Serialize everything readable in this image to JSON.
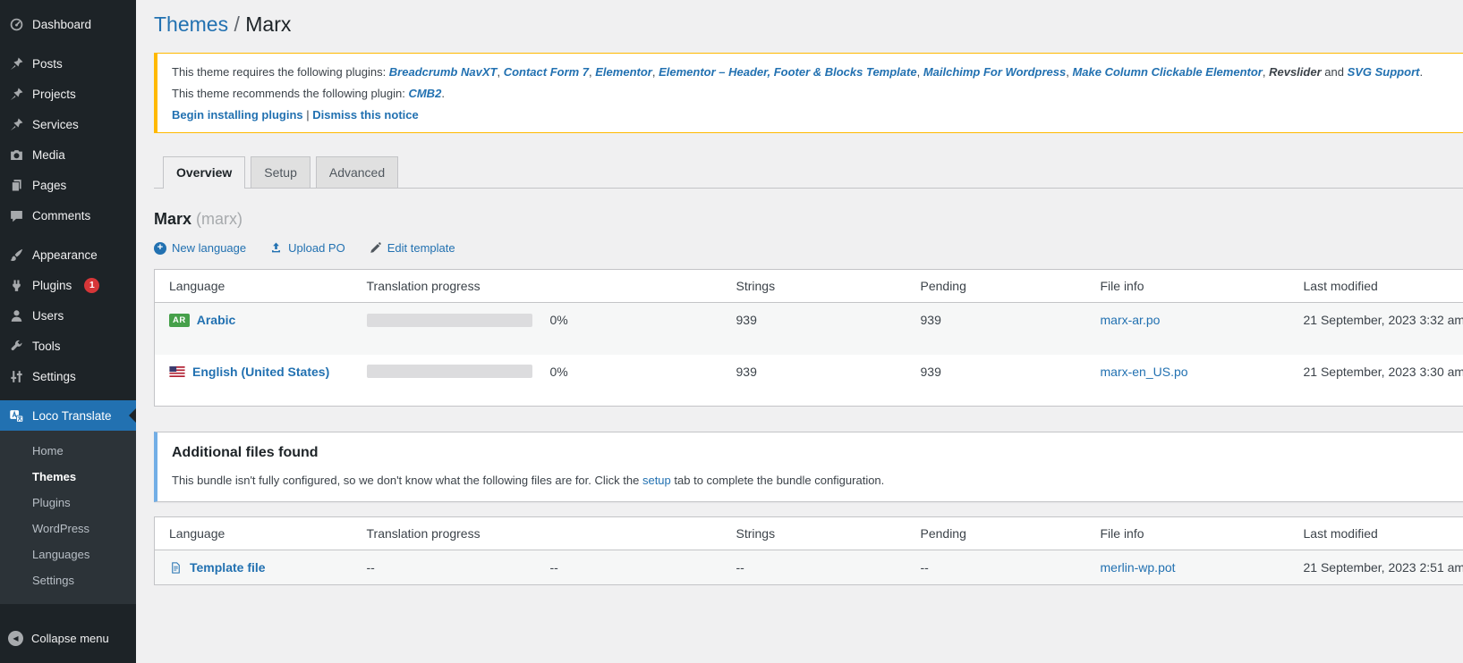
{
  "sidebar": {
    "items": [
      {
        "label": "Dashboard"
      },
      {
        "label": "Posts"
      },
      {
        "label": "Projects"
      },
      {
        "label": "Services"
      },
      {
        "label": "Media"
      },
      {
        "label": "Pages"
      },
      {
        "label": "Comments"
      },
      {
        "label": "Appearance"
      },
      {
        "label": "Plugins",
        "badge": "1"
      },
      {
        "label": "Users"
      },
      {
        "label": "Tools"
      },
      {
        "label": "Settings"
      },
      {
        "label": "Loco Translate"
      }
    ],
    "submenu": [
      {
        "label": "Home"
      },
      {
        "label": "Themes"
      },
      {
        "label": "Plugins"
      },
      {
        "label": "WordPress"
      },
      {
        "label": "Languages"
      },
      {
        "label": "Settings"
      }
    ],
    "collapse_label": "Collapse menu"
  },
  "breadcrumb": {
    "section": "Themes",
    "separator": " / ",
    "current": "Marx"
  },
  "notice": {
    "requires_prefix": "This theme requires the following plugins: ",
    "required_plugins": [
      {
        "name": "Breadcrumb NavXT",
        "link": true
      },
      {
        "name": "Contact Form 7",
        "link": true
      },
      {
        "name": "Elementor",
        "link": true
      },
      {
        "name": "Elementor – Header, Footer & Blocks Template",
        "link": true
      },
      {
        "name": "Mailchimp For Wordpress",
        "link": true
      },
      {
        "name": "Make Column Clickable Elementor",
        "link": true
      },
      {
        "name": "Revslider",
        "link": false
      },
      {
        "name": "SVG Support",
        "link": true
      }
    ],
    "separator": ", ",
    "last_separator": " and ",
    "terminator": ".",
    "recommends_prefix": "This theme recommends the following plugin: ",
    "recommended_plugin": "CMB2",
    "recommended_terminator": ".",
    "action_install": "Begin installing plugins",
    "action_separator": " | ",
    "action_dismiss": "Dismiss this notice"
  },
  "tabs": [
    {
      "label": "Overview"
    },
    {
      "label": "Setup"
    },
    {
      "label": "Advanced"
    }
  ],
  "bundle": {
    "title": "Marx",
    "slug": "(marx)"
  },
  "actions": {
    "new_language": "New language",
    "upload_po": "Upload PO",
    "edit_template": "Edit template"
  },
  "columns": {
    "language": "Language",
    "progress": "Translation progress",
    "strings": "Strings",
    "pending": "Pending",
    "file": "File info",
    "modified": "Last modified"
  },
  "translations": {
    "rows": [
      {
        "code": "AR",
        "language": "Arabic",
        "percent": "0%",
        "strings": "939",
        "pending": "939",
        "file": "marx-ar.po",
        "modified": "21 September, 2023 3:32 am"
      },
      {
        "language": "English (United States)",
        "percent": "0%",
        "strings": "939",
        "pending": "939",
        "file": "marx-en_US.po",
        "modified": "21 September, 2023 3:30 am"
      }
    ]
  },
  "additional": {
    "title": "Additional files found",
    "body_before": "This bundle isn't fully configured, so we don't know what the following files are for. Click the ",
    "setup_link": "setup",
    "body_after": " tab to complete the bundle configuration."
  },
  "template_table": {
    "rows": [
      {
        "language": "Template file",
        "progress_dash": "--",
        "percent_dash": "--",
        "strings": "--",
        "pending": "--",
        "file": "merlin-wp.pot",
        "modified": "21 September, 2023 2:51 am"
      }
    ]
  },
  "colors": {
    "accent_link": "#2271b1",
    "menu_bg": "#1d2327",
    "submenu_bg": "#2c3338",
    "active_menu_bg": "#2271b1",
    "warning_border": "#ffb900",
    "info_border": "#72aee6",
    "badge_red": "#d63638",
    "badge_green": "#46a04a",
    "page_bg": "#f0f0f1",
    "panel_bg": "#ffffff",
    "progress_track": "#dcdcde"
  }
}
